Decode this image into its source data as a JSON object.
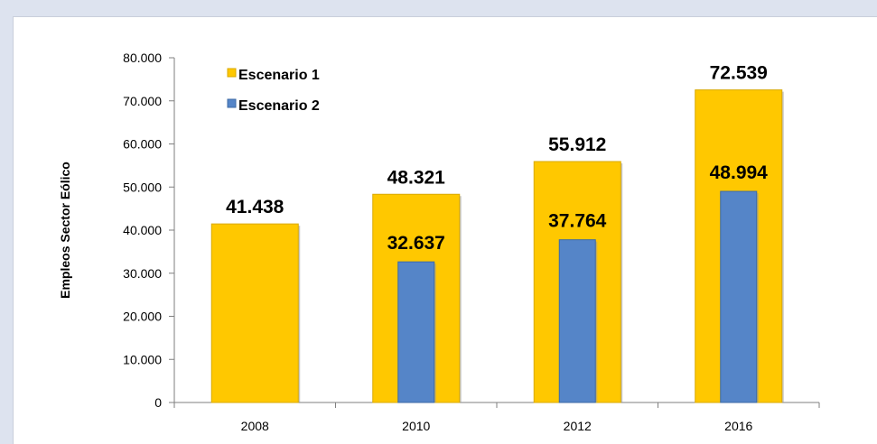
{
  "chart_data": {
    "type": "bar",
    "categories": [
      "2008",
      "2010",
      "2012",
      "2016"
    ],
    "series": [
      {
        "name": "Escenario 1",
        "values": [
          41438,
          48321,
          55912,
          72539
        ],
        "labels": [
          "41.438",
          "48.321",
          "55.912",
          "72.539"
        ],
        "color": "#ffc800"
      },
      {
        "name": "Escenario 2",
        "values": [
          null,
          32637,
          37764,
          48994
        ],
        "labels": [
          "",
          "32.637",
          "37.764",
          "48.994"
        ],
        "color": "#5585c8"
      }
    ],
    "ylabel": "Empleos Sector Eólico",
    "xlabel": "",
    "ylim": [
      0,
      80000
    ],
    "yticks": [
      "0",
      "10.000",
      "20.000",
      "30.000",
      "40.000",
      "50.000",
      "60.000",
      "70.000",
      "80.000"
    ],
    "ytick_values": [
      0,
      10000,
      20000,
      30000,
      40000,
      50000,
      60000,
      70000,
      80000
    ],
    "legend_position": "top-left",
    "grid": false
  }
}
